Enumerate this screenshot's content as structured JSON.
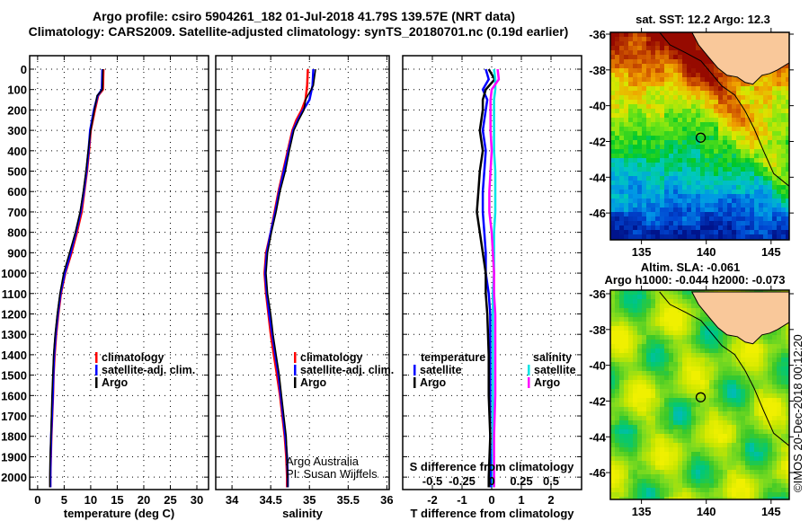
{
  "title_line1": "Argo profile: csiro 5904261_182 01-Jul-2018 41.79S 139.57E (NRT data)",
  "title_line2": "Climatology: CARS2009. Satellite-adjusted climatology: synTS_20180701.nc (0.19d earlier)",
  "credit_line1": "Argo Australia",
  "credit_line2": "PI: Susan Wijffels",
  "copyright": "©IMOS 20-Dec-2018 00:12:20",
  "colors": {
    "climatology": "#ff0000",
    "satellite": "#0000ff",
    "argo": "#000000",
    "sal_satellite": "#00e5e5",
    "sal_argo": "#ff00ff",
    "land": "#f9c89a"
  },
  "chart_data": [
    {
      "type": "line",
      "id": "temperature",
      "xlabel": "temperature (deg C)",
      "ylabel": "",
      "xlim": [
        -1.5,
        32.2
      ],
      "ylim": [
        2061,
        -66
      ],
      "xticks": [
        "0",
        "5",
        "10",
        "15",
        "20",
        "25",
        "30"
      ],
      "yticks": [
        "0",
        "100",
        "200",
        "300",
        "400",
        "500",
        "600",
        "700",
        "800",
        "900",
        "1000",
        "1100",
        "1200",
        "1300",
        "1400",
        "1500",
        "1600",
        "1700",
        "1800",
        "1900",
        "2000"
      ],
      "grid": true,
      "legend": [
        "climatology",
        "satellite-adj. clim.",
        "Argo"
      ],
      "depth": [
        0,
        100,
        130,
        200,
        300,
        400,
        500,
        600,
        700,
        800,
        900,
        1000,
        1100,
        1200,
        1300,
        1400,
        1500,
        1600,
        1700,
        1800,
        1900,
        2000,
        2050
      ],
      "series": [
        {
          "name": "climatology",
          "values": [
            12.4,
            12.3,
            11.4,
            10.8,
            10.0,
            9.7,
            9.3,
            8.8,
            8.3,
            7.4,
            6.4,
            5.2,
            4.4,
            3.9,
            3.5,
            3.2,
            3.0,
            2.9,
            2.75,
            2.6,
            2.5,
            2.4,
            2.4
          ]
        },
        {
          "name": "satellite-adj. clim.",
          "values": [
            12.2,
            12.1,
            11.3,
            10.6,
            9.9,
            9.6,
            9.2,
            8.7,
            8.1,
            7.2,
            6.2,
            5.1,
            4.3,
            3.8,
            3.4,
            3.1,
            2.95,
            2.85,
            2.7,
            2.55,
            2.45,
            2.4,
            2.4
          ]
        },
        {
          "name": "Argo",
          "values": [
            12.3,
            12.2,
            11.2,
            10.7,
            10.0,
            9.5,
            9.1,
            8.6,
            8.0,
            7.1,
            6.0,
            4.9,
            4.2,
            3.7,
            3.3,
            3.0,
            2.85,
            2.7,
            2.6,
            2.5,
            2.35,
            2.3,
            2.3
          ]
        }
      ]
    },
    {
      "type": "line",
      "id": "salinity",
      "xlabel": "salinity",
      "xlim": [
        33.79,
        36.03
      ],
      "ylim": [
        2061,
        -66
      ],
      "xticks": [
        "34",
        "34.5",
        "35",
        "35.5",
        "36"
      ],
      "grid": true,
      "legend": [
        "climatology",
        "satellite-adj. clim.",
        "Argo"
      ],
      "depth": [
        0,
        80,
        150,
        200,
        250,
        300,
        400,
        500,
        600,
        700,
        800,
        900,
        1000,
        1100,
        1200,
        1300,
        1400,
        1500,
        1600,
        1700,
        1800,
        1900,
        2000,
        2050
      ],
      "series": [
        {
          "name": "climatology",
          "values": [
            34.98,
            34.97,
            34.95,
            34.9,
            34.83,
            34.78,
            34.72,
            34.66,
            34.6,
            34.55,
            34.5,
            34.44,
            34.42,
            34.44,
            34.47,
            34.5,
            34.54,
            34.58,
            34.62,
            34.65,
            34.68,
            34.7,
            34.71,
            34.71
          ]
        },
        {
          "name": "satellite-adj. clim.",
          "values": [
            35.05,
            35.04,
            35.0,
            34.92,
            34.85,
            34.79,
            34.73,
            34.67,
            34.61,
            34.56,
            34.5,
            34.45,
            34.43,
            34.45,
            34.48,
            34.52,
            34.56,
            34.6,
            34.63,
            34.66,
            34.69,
            34.71,
            34.72,
            34.72
          ]
        },
        {
          "name": "Argo",
          "values": [
            35.08,
            35.05,
            34.95,
            34.93,
            34.86,
            34.8,
            34.74,
            34.69,
            34.62,
            34.57,
            34.51,
            34.46,
            34.44,
            34.46,
            34.5,
            34.53,
            34.57,
            34.61,
            34.64,
            34.67,
            34.7,
            34.71,
            34.72,
            34.72
          ]
        }
      ]
    },
    {
      "type": "line",
      "id": "difference",
      "xlabel": "T difference from climatology",
      "x2label": "S difference from climatology",
      "xlim": [
        -3,
        3.03
      ],
      "ylim": [
        2061,
        -66
      ],
      "xticks": [
        "-2",
        "-1",
        "0",
        "1",
        "2"
      ],
      "x2ticks": [
        "-0.5",
        "-0.25",
        "0",
        "0.25",
        "0.5"
      ],
      "grid": true,
      "legend_temperature_title": "temperature",
      "legend_salinity_title": "salinity",
      "legend_temperature": [
        "satellite",
        "Argo"
      ],
      "legend_salinity": [
        "satellite",
        "Argo"
      ],
      "depth": [
        0,
        50,
        100,
        150,
        200,
        300,
        400,
        500,
        600,
        700,
        800,
        900,
        1000,
        1100,
        1200,
        1400,
        1600,
        1800,
        2000,
        2050
      ],
      "series": [
        {
          "name": "temperature satellite",
          "axis": "T",
          "values": [
            -0.2,
            -0.1,
            -0.3,
            -0.15,
            -0.2,
            -0.3,
            -0.2,
            -0.25,
            -0.3,
            -0.3,
            -0.25,
            -0.2,
            -0.2,
            -0.1,
            -0.05,
            -0.05,
            -0.05,
            -0.05,
            -0.03,
            -0.03
          ]
        },
        {
          "name": "temperature Argo",
          "axis": "T",
          "values": [
            -0.1,
            0.1,
            -0.2,
            -0.3,
            -0.3,
            -0.4,
            -0.3,
            -0.4,
            -0.45,
            -0.5,
            -0.4,
            -0.3,
            -0.2,
            -0.2,
            -0.15,
            -0.1,
            -0.1,
            -0.05,
            -0.1,
            -0.1
          ]
        },
        {
          "name": "salinity satellite",
          "axis": "S",
          "values": [
            0.02,
            0.03,
            0.03,
            0.02,
            0.02,
            0.02,
            0.02,
            0.03,
            0.03,
            0.03,
            0.02,
            0.02,
            0.02,
            0.01,
            0.01,
            0.01,
            0.01,
            0.01,
            0.01,
            0.01
          ]
        },
        {
          "name": "salinity Argo",
          "axis": "S",
          "values": [
            0.05,
            0.06,
            0.0,
            -0.01,
            -0.01,
            -0.01,
            0.0,
            -0.01,
            -0.02,
            -0.02,
            0.0,
            0.01,
            0.02,
            0.02,
            0.03,
            0.03,
            0.03,
            0.02,
            0.02,
            0.02
          ]
        }
      ]
    },
    {
      "type": "heatmap",
      "id": "sst_map",
      "title": "sat. SST: 12.2 Argo: 12.3",
      "xlim": [
        132.6,
        146.4
      ],
      "ylim": [
        -47.5,
        -35.9
      ],
      "xticks": [
        "135",
        "140",
        "145"
      ],
      "yticks": [
        "-36",
        "-38",
        "-40",
        "-42",
        "-44",
        "-46"
      ],
      "argo_position": [
        139.57,
        -41.79
      ]
    },
    {
      "type": "heatmap",
      "id": "sla_map",
      "title_line1": "Altim. SLA: -0.061",
      "title_line2": "Argo h1000: -0.044 h2000: -0.073",
      "xlim": [
        132.6,
        146.4
      ],
      "ylim": [
        -47.5,
        -35.8
      ],
      "xticks": [
        "135",
        "140",
        "145"
      ],
      "yticks": [
        "-36",
        "-38",
        "-40",
        "-42",
        "-44",
        "-46"
      ],
      "argo_position": [
        139.57,
        -41.79
      ]
    }
  ]
}
